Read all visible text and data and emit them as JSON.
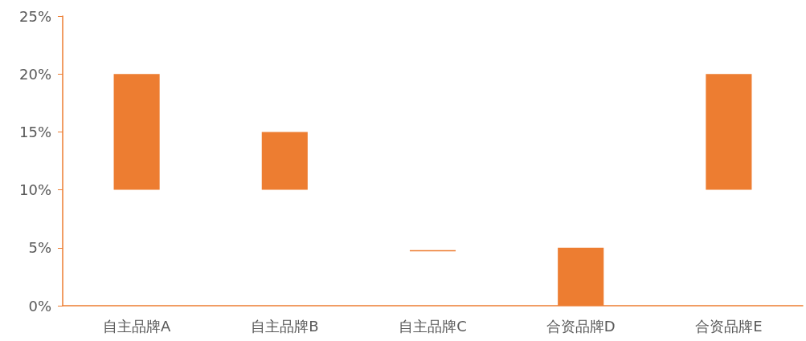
{
  "chart_data": {
    "type": "bar",
    "categories": [
      "自主品牌A",
      "自主品牌B",
      "自主品牌C",
      "合资品牌D",
      "合资品牌E"
    ],
    "base": [
      10,
      10,
      4.7,
      0,
      10
    ],
    "values": [
      10,
      5,
      0.1,
      5,
      10
    ],
    "color": "#ed7d31",
    "ylim": [
      0,
      25
    ],
    "yticks": [
      {
        "value": 0,
        "label": "0%"
      },
      {
        "value": 5,
        "label": "5%"
      },
      {
        "value": 10,
        "label": "10%"
      },
      {
        "value": 15,
        "label": "15%"
      },
      {
        "value": 20,
        "label": "20%"
      },
      {
        "value": 25,
        "label": "25%"
      }
    ],
    "grid": false
  }
}
